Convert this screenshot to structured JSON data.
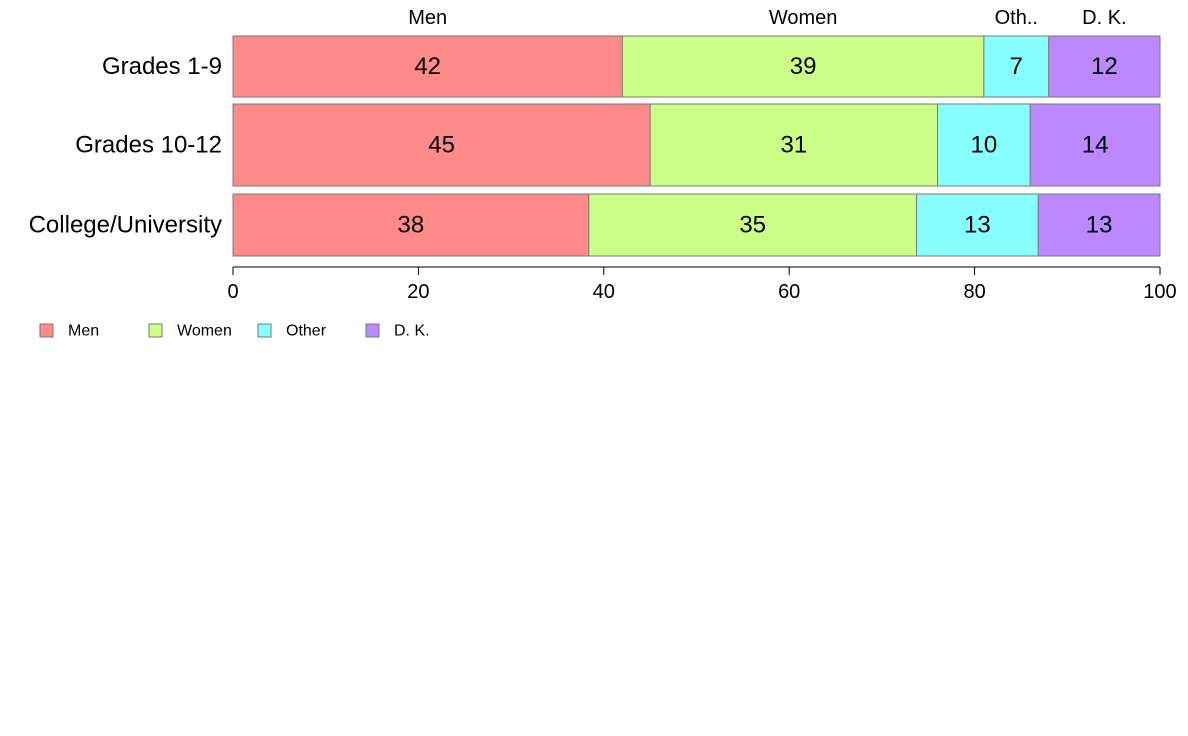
{
  "chart_data": {
    "type": "bar",
    "orientation": "horizontal",
    "stacked": true,
    "categories": [
      "Grades 1-9",
      "Grades 10-12",
      "College/University"
    ],
    "series": [
      {
        "name": "Men",
        "values": [
          42,
          45,
          38
        ],
        "color": "#FF8A8A"
      },
      {
        "name": "Women",
        "values": [
          39,
          31,
          35
        ],
        "color": "#CCFF88"
      },
      {
        "name": "Other",
        "values": [
          7,
          10,
          13
        ],
        "color": "#88FFFF"
      },
      {
        "name": "D. K.",
        "values": [
          12,
          14,
          13
        ],
        "color": "#BB88FF"
      }
    ],
    "top_labels": [
      "Men",
      "Women",
      "Oth..",
      "D. K."
    ],
    "xlim": [
      0,
      100
    ],
    "xticks": [
      "0",
      "20",
      "40",
      "60",
      "80",
      "100"
    ],
    "grid": false,
    "legend_position": "bottom-left"
  }
}
